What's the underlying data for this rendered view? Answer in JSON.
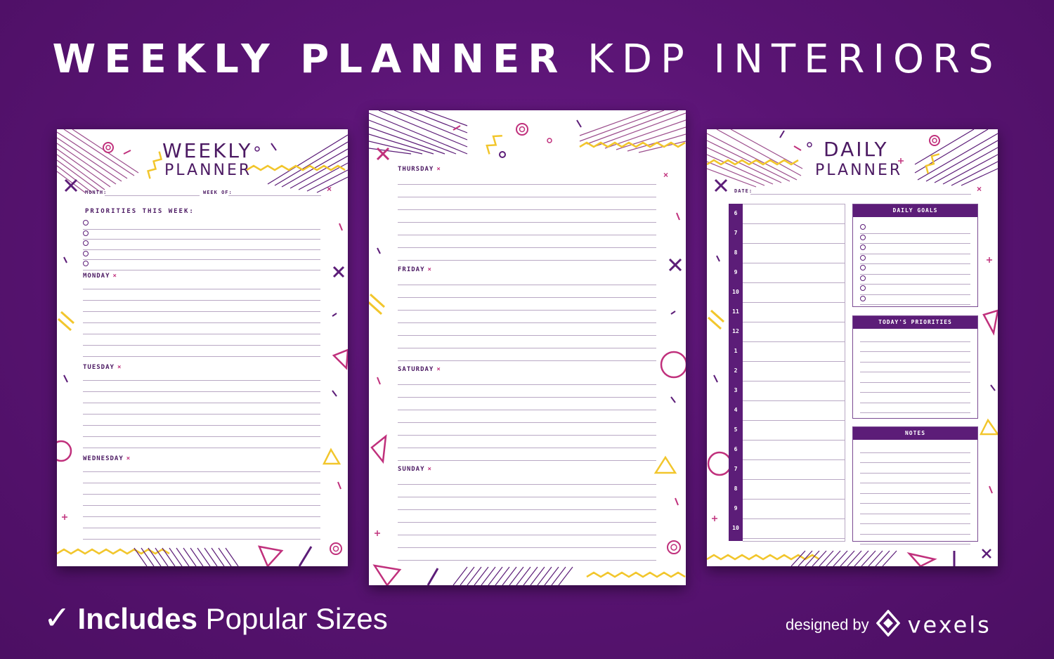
{
  "headline": {
    "bold": "WEEKLY PLANNER",
    "light": "KDP INTERIORS"
  },
  "weekly_page": {
    "title_line1": "WEEKLY",
    "title_line2": "PLANNER",
    "month_label": "MONTH:",
    "week_label": "WEEK OF:",
    "priorities_label": "PRIORITIES THIS WEEK:",
    "days": [
      "MONDAY",
      "TUESDAY",
      "WEDNESDAY"
    ]
  },
  "middle_page": {
    "days": [
      "THURSDAY",
      "FRIDAY",
      "SATURDAY",
      "SUNDAY"
    ]
  },
  "daily_page": {
    "title_line1": "DAILY",
    "title_line2": "PLANNER",
    "date_label": "DATE:",
    "hours": [
      "6",
      "7",
      "8",
      "9",
      "10",
      "11",
      "12",
      "1",
      "2",
      "3",
      "4",
      "5",
      "6",
      "7",
      "8",
      "9",
      "10"
    ],
    "goals_title": "DAILY GOALS",
    "priorities_title": "TODAY'S PRIORITIES",
    "notes_title": "NOTES"
  },
  "close_mark": "×",
  "footer": {
    "check": "✓",
    "includes_bold": "Includes",
    "includes_light": "Popular Sizes",
    "designed_by": "designed by",
    "brand": "vexels"
  },
  "colors": {
    "purple": "#5c1d78",
    "magenta": "#c0307c",
    "yellow": "#f2c62c",
    "background": "#5a1474"
  }
}
